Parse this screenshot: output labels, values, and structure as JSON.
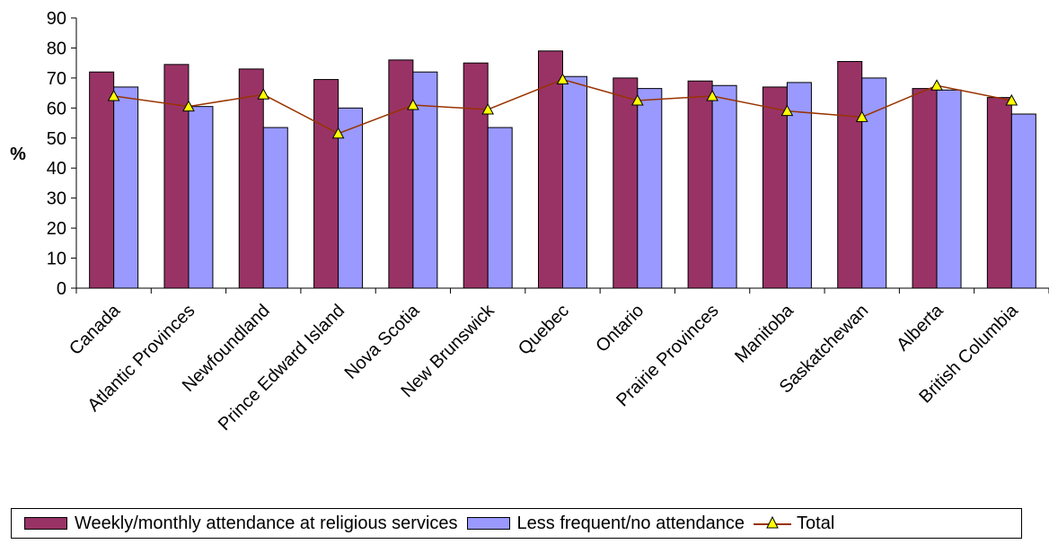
{
  "chart_data": {
    "type": "bar",
    "ylabel": "%",
    "ylim": [
      0,
      90
    ],
    "yticks": [
      0,
      10,
      20,
      30,
      40,
      50,
      60,
      70,
      80,
      90
    ],
    "categories": [
      "Canada",
      "Atlantic Provinces",
      "Newfoundland",
      "Prince Edward Island",
      "Nova Scotia",
      "New Brunswick",
      "Quebec",
      "Ontario",
      "Prairie Provinces",
      "Manitoba",
      "Saskatchewan",
      "Alberta",
      "British Columbia"
    ],
    "series": [
      {
        "name": "Weekly/monthly attendance at religious services",
        "kind": "bar",
        "color": "#993366",
        "values": [
          72,
          74.5,
          73,
          69.5,
          76,
          75,
          79,
          70,
          69,
          67,
          75.5,
          66.5,
          63.5
        ]
      },
      {
        "name": "Less frequent/no attendance",
        "kind": "bar",
        "color": "#9999ff",
        "values": [
          67,
          60.5,
          53.5,
          60,
          72,
          53.5,
          70.5,
          66.5,
          67.5,
          68.5,
          70,
          66,
          58
        ]
      },
      {
        "name": "Total",
        "kind": "line",
        "color": "#993300",
        "marker": "triangle",
        "marker_color": "#ffff00",
        "values": [
          64,
          60.5,
          64.5,
          51.5,
          61,
          59.5,
          69.5,
          62.5,
          64,
          59,
          57,
          67.5,
          62.5
        ]
      }
    ],
    "grid": false,
    "legend_position": "bottom"
  }
}
